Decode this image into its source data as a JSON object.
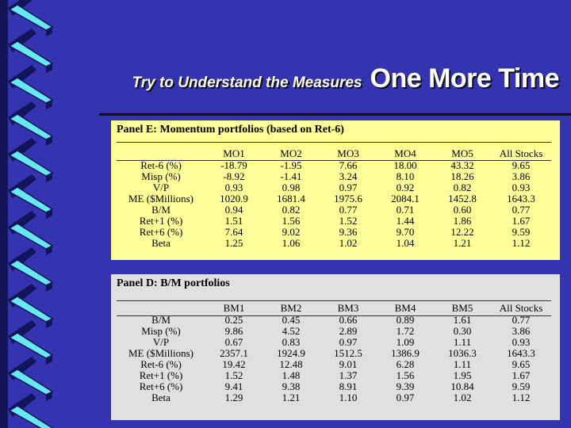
{
  "slide": {
    "title_part1": "Try to Understand the Measures",
    "title_part2": "One More Time"
  },
  "panel_e": {
    "title": "Panel E: Momentum portfolios (based on Ret-6)",
    "columns": [
      "MO1",
      "MO2",
      "MO3",
      "MO4",
      "MO5",
      "All Stocks"
    ],
    "rows": [
      {
        "label": "Ret-6  (%)",
        "values": [
          "-18.79",
          "-1.95",
          "7.66",
          "18.00",
          "43.32",
          "9.65"
        ]
      },
      {
        "label": "Misp  (%)",
        "values": [
          "-8.92",
          "-1.41",
          "3.24",
          "8.10",
          "18.26",
          "3.86"
        ]
      },
      {
        "label": "V/P",
        "values": [
          "0.93",
          "0.98",
          "0.97",
          "0.92",
          "0.82",
          "0.93"
        ]
      },
      {
        "label": "ME ($Millions)",
        "values": [
          "1020.9",
          "1681.4",
          "1975.6",
          "2084.1",
          "1452.8",
          "1643.3"
        ]
      },
      {
        "label": "B/M",
        "values": [
          "0.94",
          "0.82",
          "0.77",
          "0.71",
          "0.60",
          "0.77"
        ]
      },
      {
        "label": "Ret+1 (%)",
        "values": [
          "1.51",
          "1.56",
          "1.52",
          "1.44",
          "1.86",
          "1.67"
        ]
      },
      {
        "label": "Ret+6 (%)",
        "values": [
          "7.64",
          "9.02",
          "9.36",
          "9.70",
          "12.22",
          "9.59"
        ]
      },
      {
        "label": "Beta",
        "values": [
          "1.25",
          "1.06",
          "1.02",
          "1.04",
          "1.21",
          "1.12"
        ]
      }
    ]
  },
  "panel_d": {
    "title_bold": "Panel D:",
    "title_rest": "B/M portfolios",
    "columns": [
      "BM1",
      "BM2",
      "BM3",
      "BM4",
      "BM5",
      "All Stocks"
    ],
    "rows": [
      {
        "label": "B/M",
        "values": [
          "0.25",
          "0.45",
          "0.66",
          "0.89",
          "1.61",
          "0.77"
        ]
      },
      {
        "label": "Misp  (%)",
        "values": [
          "9.86",
          "4.52",
          "2.89",
          "1.72",
          "0.30",
          "3.86"
        ]
      },
      {
        "label": "V/P",
        "values": [
          "0.67",
          "0.83",
          "0.97",
          "1.09",
          "1.11",
          "0.93"
        ]
      },
      {
        "label": "ME ($Millions)",
        "values": [
          "2357.1",
          "1924.9",
          "1512.5",
          "1386.9",
          "1036.3",
          "1643.3"
        ]
      },
      {
        "label": "Ret-6  (%)",
        "values": [
          "19.42",
          "12.48",
          "9.01",
          "6.28",
          "1.11",
          "9.65"
        ]
      },
      {
        "label": "Ret+1 (%)",
        "values": [
          "1.52",
          "1.48",
          "1.37",
          "1.56",
          "1.95",
          "1.67"
        ]
      },
      {
        "label": "Ret+6 (%)",
        "values": [
          "9.41",
          "9.38",
          "8.91",
          "9.39",
          "10.84",
          "9.59"
        ]
      },
      {
        "label": "Beta",
        "values": [
          "1.29",
          "1.21",
          "1.10",
          "0.97",
          "1.02",
          "1.12"
        ]
      }
    ]
  },
  "colors": {
    "background": "#3434b0",
    "panel_e_bg": "#ffff99",
    "panel_d_bg": "#e0e0e0",
    "ribbon_cyan": "#66e8ee",
    "ribbon_dark": "#14145a"
  }
}
